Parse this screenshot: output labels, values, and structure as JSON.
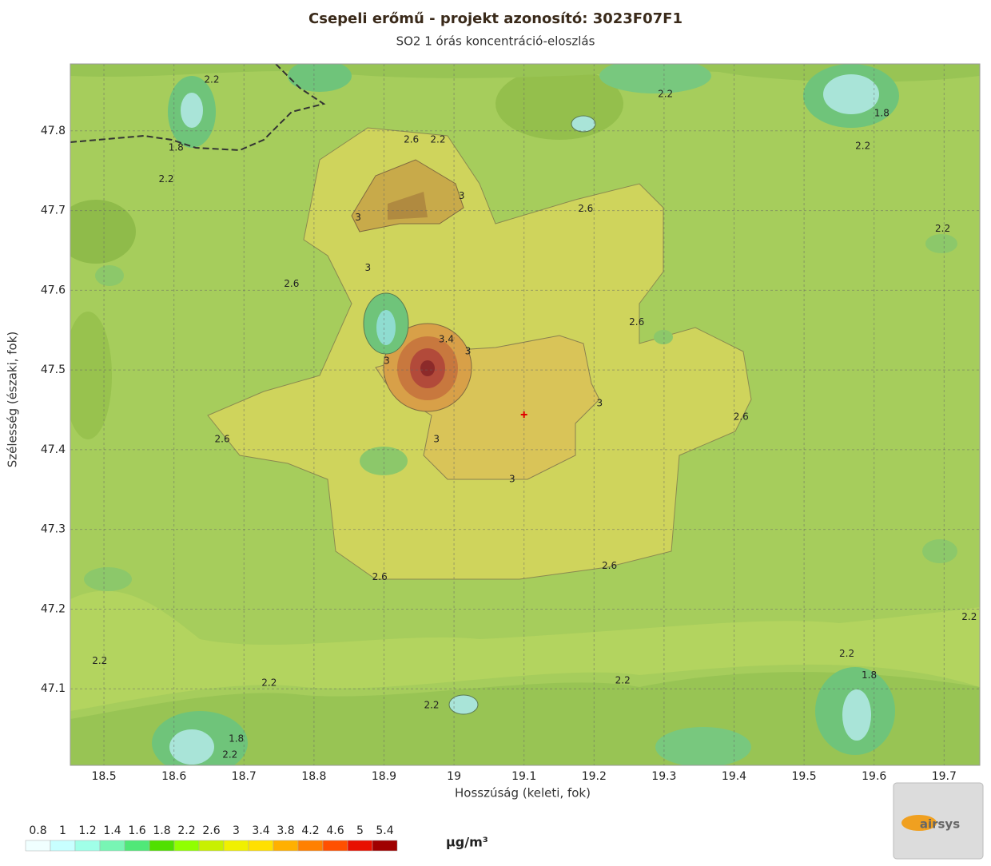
{
  "chart_data": {
    "type": "contour",
    "title": "Csepeli erőmű - projekt azonosító: 3023F07F1",
    "subtitle": "SO2 1 órás koncentráció-eloszlás",
    "x_label": "Hosszúság (keleti, fok)",
    "y_label": "Szélesség (északi, fok)",
    "xlim": [
      18.452,
      19.751
    ],
    "ylim": [
      47.004,
      47.884
    ],
    "xticks": [
      18.5,
      18.6,
      18.7,
      18.8,
      18.9,
      19,
      19.1,
      19.2,
      19.3,
      19.4,
      19.5,
      19.6,
      19.7
    ],
    "yticks": [
      47.1,
      47.2,
      47.3,
      47.4,
      47.5,
      47.6,
      47.7,
      47.8
    ],
    "grid": true,
    "source": {
      "lon": 19.1,
      "lat": 47.444,
      "color": "#e00000"
    },
    "contour_labels": [
      {
        "lon": 18.654,
        "lat": 47.864,
        "value": 2.2
      },
      {
        "lon": 18.939,
        "lat": 47.789,
        "value": 2.6
      },
      {
        "lon": 18.977,
        "lat": 47.789,
        "value": 2.2
      },
      {
        "lon": 19.011,
        "lat": 47.718,
        "value": 3
      },
      {
        "lon": 18.863,
        "lat": 47.691,
        "value": 3
      },
      {
        "lon": 19.188,
        "lat": 47.702,
        "value": 2.6
      },
      {
        "lon": 19.302,
        "lat": 47.846,
        "value": 2.2
      },
      {
        "lon": 19.611,
        "lat": 47.822,
        "value": 1.8
      },
      {
        "lon": 19.584,
        "lat": 47.781,
        "value": 2.2
      },
      {
        "lon": 18.603,
        "lat": 47.779,
        "value": 1.8
      },
      {
        "lon": 18.589,
        "lat": 47.739,
        "value": 2.2
      },
      {
        "lon": 19.698,
        "lat": 47.677,
        "value": 2.2
      },
      {
        "lon": 18.877,
        "lat": 47.628,
        "value": 3
      },
      {
        "lon": 18.768,
        "lat": 47.608,
        "value": 2.6
      },
      {
        "lon": 19.261,
        "lat": 47.56,
        "value": 2.6
      },
      {
        "lon": 18.989,
        "lat": 47.538,
        "value": 3.4
      },
      {
        "lon": 19.02,
        "lat": 47.523,
        "value": 3
      },
      {
        "lon": 18.904,
        "lat": 47.511,
        "value": 3
      },
      {
        "lon": 19.208,
        "lat": 47.458,
        "value": 3
      },
      {
        "lon": 19.41,
        "lat": 47.441,
        "value": 2.6
      },
      {
        "lon": 18.669,
        "lat": 47.413,
        "value": 2.6
      },
      {
        "lon": 18.975,
        "lat": 47.413,
        "value": 3
      },
      {
        "lon": 19.083,
        "lat": 47.363,
        "value": 3
      },
      {
        "lon": 18.894,
        "lat": 47.24,
        "value": 2.6
      },
      {
        "lon": 19.222,
        "lat": 47.254,
        "value": 2.6
      },
      {
        "lon": 19.736,
        "lat": 47.19,
        "value": 2.2
      },
      {
        "lon": 18.494,
        "lat": 47.135,
        "value": 2.2
      },
      {
        "lon": 19.561,
        "lat": 47.144,
        "value": 2.2
      },
      {
        "lon": 19.593,
        "lat": 47.117,
        "value": 1.8
      },
      {
        "lon": 18.736,
        "lat": 47.107,
        "value": 2.2
      },
      {
        "lon": 19.241,
        "lat": 47.11,
        "value": 2.2
      },
      {
        "lon": 18.968,
        "lat": 47.079,
        "value": 2.2
      },
      {
        "lon": 18.689,
        "lat": 47.037,
        "value": 1.8
      },
      {
        "lon": 18.68,
        "lat": 47.017,
        "value": 2.2
      }
    ],
    "legend": {
      "unit": "µg/m³",
      "levels": [
        {
          "value": 0.8,
          "color": "#f0ffff"
        },
        {
          "value": 1,
          "color": "#c8ffff"
        },
        {
          "value": 1.2,
          "color": "#a0ffe8"
        },
        {
          "value": 1.4,
          "color": "#78f5b4"
        },
        {
          "value": 1.6,
          "color": "#50e878"
        },
        {
          "value": 1.8,
          "color": "#50e000"
        },
        {
          "value": 2.2,
          "color": "#90ff00"
        },
        {
          "value": 2.6,
          "color": "#c8f000"
        },
        {
          "value": 3,
          "color": "#f0f000"
        },
        {
          "value": 3.4,
          "color": "#ffe000"
        },
        {
          "value": 3.8,
          "color": "#ffb000"
        },
        {
          "value": 4.2,
          "color": "#ff8000"
        },
        {
          "value": 4.6,
          "color": "#ff5000"
        },
        {
          "value": 5,
          "color": "#e81000"
        },
        {
          "value": 5.4,
          "color": "#a00000"
        }
      ]
    }
  },
  "logo": {
    "text": "airsys"
  }
}
